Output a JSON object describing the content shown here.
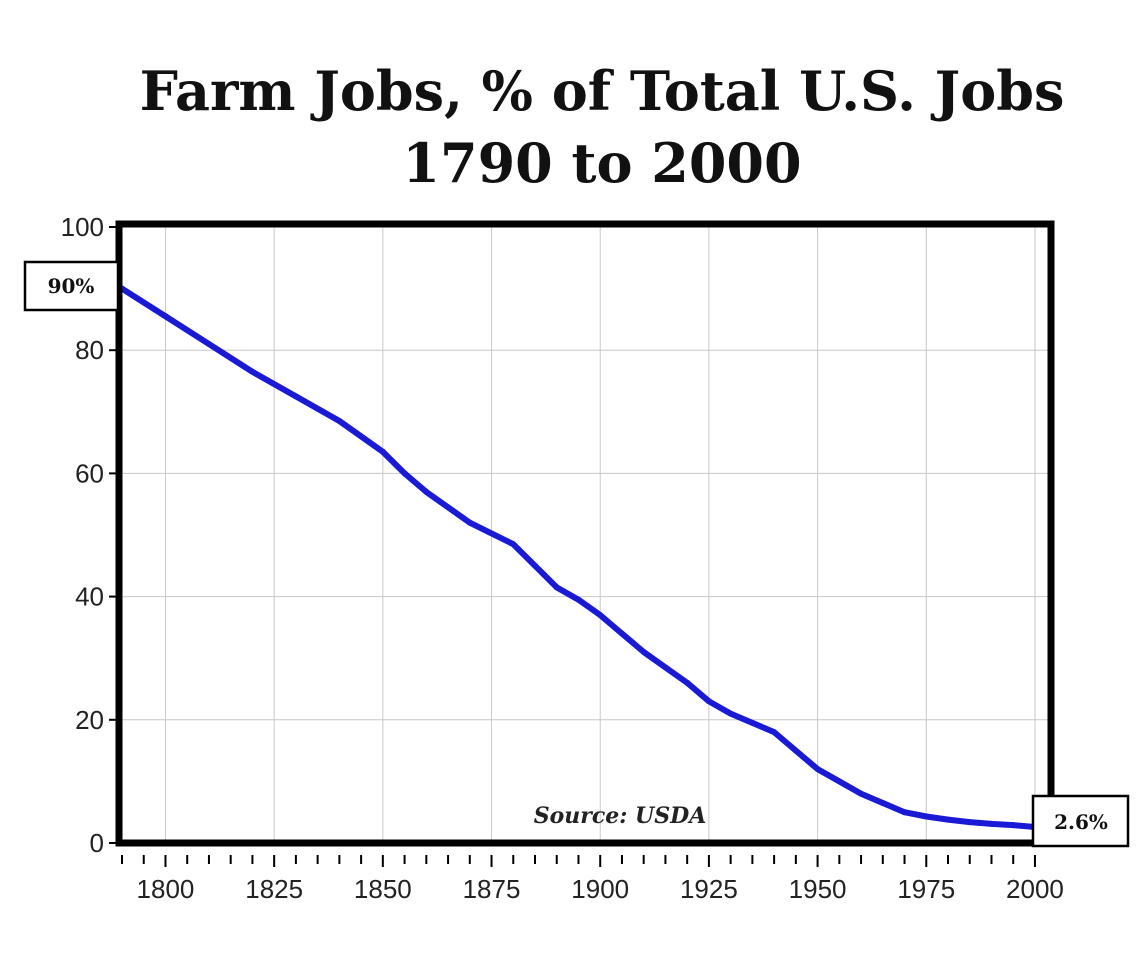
{
  "chart_data": {
    "type": "line",
    "title_line1": "Farm Jobs, % of Total U.S. Jobs",
    "title_line2": "1790 to 2000",
    "xlabel": "",
    "ylabel": "",
    "xlim": [
      1790,
      2003
    ],
    "ylim": [
      0,
      100
    ],
    "x_ticks": [
      1800,
      1825,
      1850,
      1875,
      1900,
      1925,
      1950,
      1975,
      2000
    ],
    "y_ticks": [
      0,
      20,
      40,
      60,
      80,
      100
    ],
    "grid": true,
    "series": [
      {
        "color": "#1a1ad6",
        "x": [
          1790,
          1800,
          1810,
          1820,
          1830,
          1840,
          1850,
          1855,
          1860,
          1870,
          1880,
          1885,
          1890,
          1895,
          1900,
          1905,
          1910,
          1915,
          1920,
          1925,
          1930,
          1935,
          1940,
          1945,
          1950,
          1955,
          1960,
          1965,
          1970,
          1975,
          1980,
          1985,
          1990,
          1995,
          2000
        ],
        "y": [
          90,
          85.5,
          81,
          76.5,
          72.5,
          68.5,
          63.5,
          60,
          57,
          52,
          48.5,
          45,
          41.5,
          39.5,
          37,
          34,
          31,
          28.5,
          26,
          23,
          21,
          19.5,
          18,
          15,
          12,
          10,
          8,
          6.5,
          5,
          4.3,
          3.8,
          3.4,
          3.1,
          2.9,
          2.6
        ]
      }
    ],
    "annotations": {
      "start_label": "90%",
      "end_label": "2.6%",
      "source": "Source: USDA"
    }
  }
}
